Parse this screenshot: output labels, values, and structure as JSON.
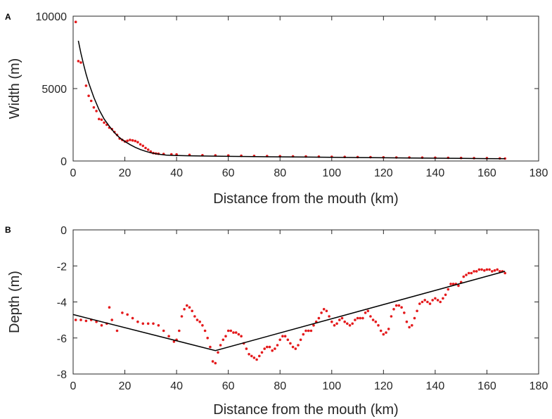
{
  "chart_data": [
    {
      "type": "scatter",
      "panel": "A",
      "xlabel": "Distance from the mouth (km)",
      "ylabel": "Width (m)",
      "xlim": [
        0,
        180
      ],
      "ylim": [
        0,
        10000
      ],
      "xticks": [
        0,
        20,
        40,
        60,
        80,
        100,
        120,
        140,
        160,
        180
      ],
      "yticks": [
        0,
        5000,
        10000
      ],
      "grid": false,
      "series": [
        {
          "kind": "points",
          "color": "#e41a1c",
          "x": [
            1,
            2,
            3,
            5,
            6,
            7,
            8,
            9,
            10,
            11,
            12,
            13,
            14,
            15,
            16,
            17,
            18,
            19,
            20,
            21,
            22,
            23,
            24,
            25,
            26,
            27,
            28,
            29,
            30,
            31,
            32,
            33,
            35,
            38,
            40,
            45,
            50,
            55,
            60,
            65,
            70,
            75,
            80,
            85,
            90,
            95,
            100,
            105,
            110,
            115,
            120,
            125,
            130,
            135,
            140,
            145,
            150,
            155,
            160,
            165,
            167
          ],
          "y": [
            9600,
            6900,
            6800,
            5200,
            4500,
            4150,
            3700,
            3450,
            2900,
            2850,
            2650,
            2500,
            2300,
            2200,
            2000,
            1800,
            1550,
            1450,
            1350,
            1400,
            1450,
            1420,
            1380,
            1300,
            1150,
            1050,
            900,
            780,
            650,
            550,
            520,
            500,
            480,
            460,
            450,
            420,
            400,
            390,
            380,
            360,
            350,
            340,
            330,
            320,
            310,
            300,
            290,
            280,
            270,
            260,
            250,
            245,
            240,
            235,
            230,
            220,
            210,
            200,
            190,
            180,
            170
          ]
        },
        {
          "kind": "fit-line",
          "color": "#000000",
          "x": [
            2,
            3,
            4,
            5,
            6,
            8,
            10,
            12,
            14,
            16,
            18,
            20,
            22,
            24,
            26,
            28,
            30,
            32,
            34,
            36,
            40,
            45,
            50,
            60,
            70,
            80,
            90,
            100,
            110,
            120,
            130,
            140,
            150,
            160,
            167
          ],
          "y": [
            8300,
            7450,
            6700,
            6000,
            5400,
            4400,
            3550,
            2900,
            2400,
            1950,
            1600,
            1350,
            1130,
            940,
            790,
            670,
            570,
            500,
            450,
            410,
            380,
            360,
            345,
            320,
            300,
            285,
            270,
            255,
            240,
            225,
            210,
            195,
            180,
            165,
            155
          ]
        }
      ]
    },
    {
      "type": "scatter",
      "panel": "B",
      "xlabel": "Distance from the mouth (km)",
      "ylabel": "Depth (m)",
      "xlim": [
        0,
        180
      ],
      "ylim": [
        -8,
        0
      ],
      "xticks": [
        0,
        20,
        40,
        60,
        80,
        100,
        120,
        140,
        160,
        180
      ],
      "yticks": [
        -8,
        -6,
        -4,
        -2,
        0
      ],
      "grid": false,
      "series": [
        {
          "kind": "points",
          "color": "#e41a1c",
          "x": [
            1,
            3,
            5,
            7,
            9,
            11,
            13,
            14,
            15,
            17,
            19,
            21,
            23,
            25,
            27,
            29,
            31,
            33,
            35,
            37,
            39,
            40,
            41,
            42,
            43,
            44,
            45,
            46,
            47,
            48,
            49,
            50,
            51,
            52,
            53,
            54,
            55,
            56,
            57,
            58,
            59,
            60,
            61,
            62,
            63,
            64,
            65,
            66,
            67,
            68,
            69,
            70,
            71,
            72,
            73,
            74,
            75,
            76,
            77,
            78,
            79,
            80,
            81,
            82,
            83,
            84,
            85,
            86,
            87,
            88,
            89,
            90,
            91,
            92,
            93,
            94,
            95,
            96,
            97,
            98,
            99,
            100,
            101,
            102,
            103,
            104,
            105,
            106,
            107,
            108,
            109,
            110,
            111,
            112,
            113,
            114,
            115,
            116,
            117,
            118,
            119,
            120,
            121,
            122,
            123,
            124,
            125,
            126,
            127,
            128,
            129,
            130,
            131,
            132,
            133,
            134,
            135,
            136,
            137,
            138,
            139,
            140,
            141,
            142,
            143,
            144,
            145,
            146,
            147,
            148,
            149,
            150,
            151,
            152,
            153,
            154,
            155,
            156,
            157,
            158,
            159,
            160,
            161,
            162,
            163,
            164,
            165,
            166,
            167
          ],
          "y": [
            -5.0,
            -5.0,
            -5.05,
            -5.0,
            -5.1,
            -5.3,
            -5.2,
            -4.3,
            -5.0,
            -5.6,
            -4.6,
            -4.7,
            -4.9,
            -5.1,
            -5.2,
            -5.2,
            -5.2,
            -5.3,
            -5.6,
            -5.9,
            -6.2,
            -6.1,
            -5.6,
            -4.8,
            -4.4,
            -4.2,
            -4.3,
            -4.5,
            -4.8,
            -5.0,
            -5.1,
            -5.3,
            -5.6,
            -6.0,
            -6.5,
            -7.3,
            -7.4,
            -6.8,
            -6.4,
            -6.1,
            -5.9,
            -5.6,
            -5.6,
            -5.7,
            -5.7,
            -5.8,
            -5.9,
            -6.3,
            -6.6,
            -6.9,
            -7.0,
            -7.1,
            -7.2,
            -7.0,
            -6.8,
            -6.6,
            -6.5,
            -6.5,
            -6.7,
            -6.6,
            -6.4,
            -6.1,
            -5.9,
            -5.9,
            -6.1,
            -6.3,
            -6.5,
            -6.6,
            -6.4,
            -6.1,
            -5.8,
            -5.6,
            -5.6,
            -5.6,
            -5.3,
            -5.1,
            -4.9,
            -4.6,
            -4.4,
            -4.5,
            -4.8,
            -5.1,
            -5.3,
            -5.2,
            -5.0,
            -4.9,
            -5.1,
            -5.2,
            -5.3,
            -5.2,
            -5.0,
            -4.9,
            -4.9,
            -4.9,
            -4.6,
            -4.5,
            -4.8,
            -5.0,
            -5.1,
            -5.3,
            -5.6,
            -5.8,
            -5.7,
            -5.5,
            -4.8,
            -4.4,
            -4.2,
            -4.2,
            -4.3,
            -4.6,
            -5.1,
            -5.4,
            -5.3,
            -4.9,
            -4.5,
            -4.1,
            -4.0,
            -3.9,
            -4.0,
            -4.1,
            -3.9,
            -3.8,
            -3.9,
            -4.0,
            -3.8,
            -3.6,
            -3.3,
            -3.0,
            -3.0,
            -3.0,
            -3.1,
            -2.9,
            -2.6,
            -2.5,
            -2.4,
            -2.4,
            -2.3,
            -2.3,
            -2.2,
            -2.2,
            -2.25,
            -2.2,
            -2.2,
            -2.3,
            -2.25,
            -2.2,
            -2.3,
            -2.3,
            -2.4
          ]
        },
        {
          "kind": "fit-line",
          "color": "#000000",
          "x": [
            0,
            55,
            167
          ],
          "y": [
            -4.7,
            -6.7,
            -2.3
          ]
        }
      ]
    }
  ],
  "panels": [
    {
      "letter": "A"
    },
    {
      "letter": "B"
    }
  ]
}
